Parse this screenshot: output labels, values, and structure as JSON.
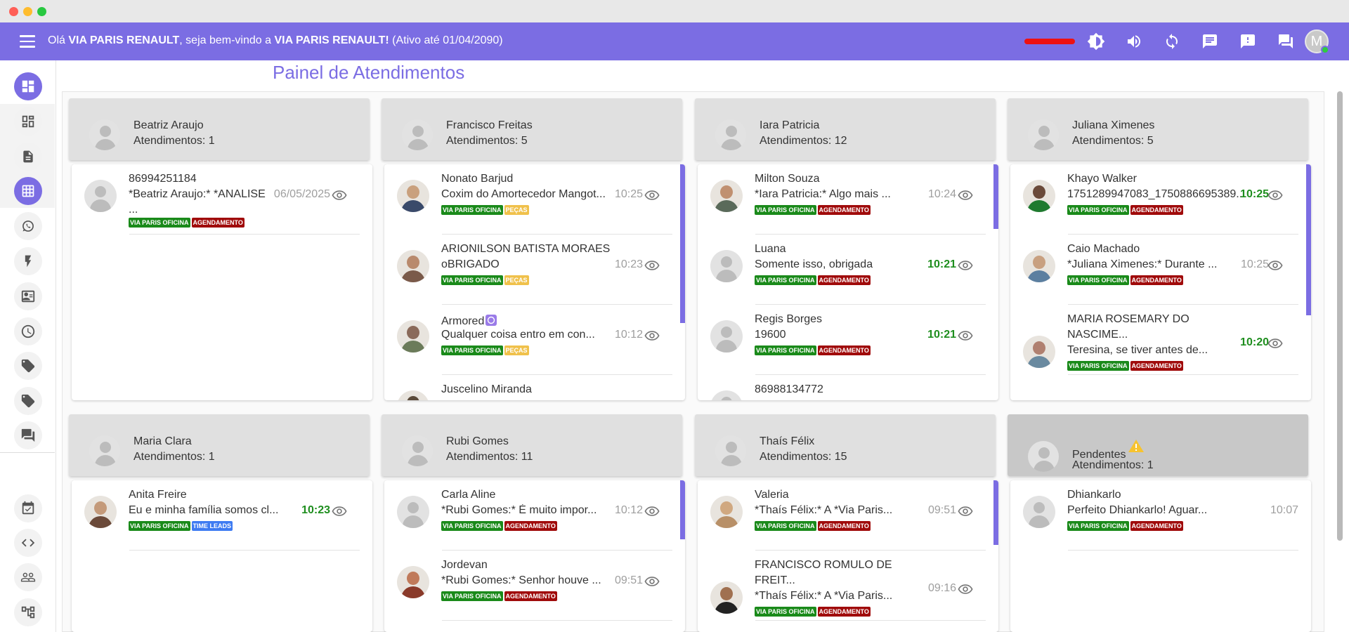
{
  "colors": {
    "accent": "#7b6de3",
    "tag_green": "#1a8a1a",
    "tag_red": "#a00b0b",
    "tag_yellow": "#f0c14b",
    "tag_blue": "#3e7bf2"
  },
  "header": {
    "greeting_prefix": "Olá ",
    "company": "VIA PARIS RENAULT",
    "greeting_mid": ", seja bem-vindo a ",
    "company2": "VIA PARIS RENAULT!",
    "greeting_suffix": " (Ativo até 01/04/2090)",
    "avatar_letter": "M",
    "icons": [
      "brightness-icon",
      "volume-icon",
      "refresh-icon",
      "chat-icon",
      "alert-chat-icon",
      "forum-icon"
    ]
  },
  "page_title": "Painel de Atendimentos",
  "tags": {
    "oficina": "VIA PARIS OFICINA",
    "agend": "AGENDAMENTO",
    "pecas": "PEÇAS",
    "leads": "TIME LEADS"
  },
  "columns": [
    {
      "name": "Beatriz Araujo",
      "count": "Atendimentos: 1",
      "items": [
        {
          "name": "86994251184",
          "msg": "*Beatriz Araujo:* *ANALISE",
          "msg2": "...",
          "time": "06/05/2025"
        }
      ]
    },
    {
      "name": "Francisco Freitas",
      "count": "Atendimentos: 5",
      "items": [
        {
          "name": "Nonato Barjud",
          "msg": "Coxim do Amortecedor Mangot...",
          "time": "10:25"
        },
        {
          "name": "ARIONILSON BATISTA MORAES",
          "msg": "oBRIGADO",
          "time": "10:23"
        },
        {
          "name": "Armored",
          "msg": "Qualquer coisa entro em con...",
          "time": "10:12"
        },
        {
          "name": "Juscelino Miranda",
          "msg": "",
          "time": ""
        }
      ]
    },
    {
      "name": "Iara Patricia",
      "count": "Atendimentos: 12",
      "items": [
        {
          "name": "Milton Souza",
          "msg": "*Iara Patricia:* Algo mais ...",
          "time": "10:24"
        },
        {
          "name": "Luana",
          "msg": "Somente isso, obrigada",
          "time": "10:21"
        },
        {
          "name": "Regis Borges",
          "msg": "19600",
          "time": "10:21"
        },
        {
          "name": "86988134772",
          "msg": "",
          "time": ""
        }
      ]
    },
    {
      "name": "Juliana Ximenes",
      "count": "Atendimentos: 5",
      "items": [
        {
          "name": "Khayo Walker",
          "msg": "1751289947083_1750886695389...",
          "time": "10:25"
        },
        {
          "name": "Caio Machado",
          "msg": "*Juliana Ximenes:* Durante ...",
          "time": "10:25"
        },
        {
          "name": "MARIA ROSEMARY DO",
          "name2": "NASCIME...",
          "msg": "Teresina, se tiver antes de...",
          "time": "10:20"
        }
      ]
    },
    {
      "name": "Maria Clara",
      "count": "Atendimentos: 1",
      "items": [
        {
          "name": "Anita Freire",
          "msg": "Eu e minha família somos cl...",
          "time": "10:23"
        }
      ]
    },
    {
      "name": "Rubi Gomes",
      "count": "Atendimentos: 11",
      "items": [
        {
          "name": "Carla Aline",
          "msg": "*Rubi Gomes:* É muito impor...",
          "time": "10:12"
        },
        {
          "name": "Jordevan",
          "msg": "*Rubi Gomes:* Senhor houve ...",
          "time": "09:51"
        }
      ]
    },
    {
      "name": "Thaís Félix",
      "count": "Atendimentos: 15",
      "items": [
        {
          "name": "Valeria",
          "msg": "*Thaís Félix:* A *Via Paris...",
          "time": "09:51"
        },
        {
          "name": "FRANCISCO ROMULO DE",
          "name2": "FREIT...",
          "msg": "*Thaís Félix:* A *Via Paris...",
          "time": "09:16"
        }
      ]
    },
    {
      "name": "Pendentes",
      "count": "Atendimentos: 1",
      "items": [
        {
          "name": "Dhiankarlo",
          "msg": "Perfeito Dhiankarlo! Aguar...",
          "time": "10:07"
        }
      ]
    }
  ]
}
